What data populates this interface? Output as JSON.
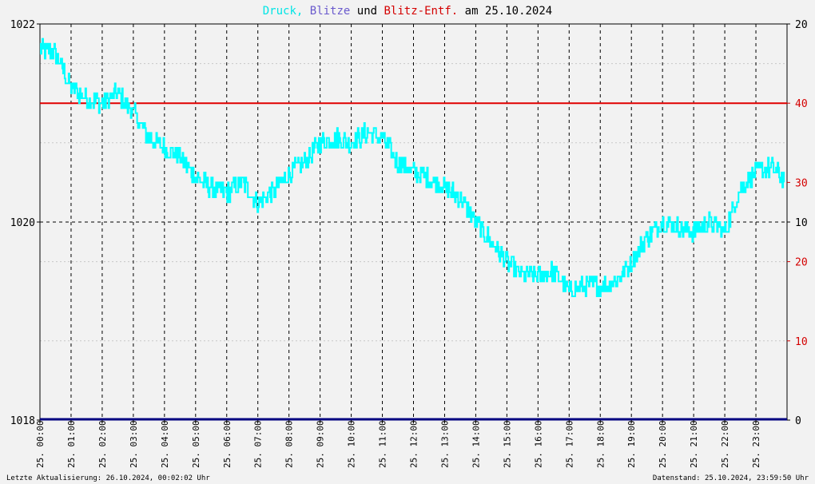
{
  "title_parts": [
    {
      "text": "Druck",
      "color": "#00e5e5"
    },
    {
      "text": ", ",
      "color": "#00e5e5"
    },
    {
      "text": "Blitze",
      "color": "#6a5acd"
    },
    {
      "text": " und ",
      "color": "#000000"
    },
    {
      "text": "Blitz-Entf.",
      "color": "#d40000"
    },
    {
      "text": " am 25.10.2024",
      "color": "#000000"
    }
  ],
  "footer": {
    "left": "Letzte Aktualisierung: 26.10.2024, 00:02:02 Uhr",
    "right": "Datenstand: 25.10.2024, 23:59:50 Uhr"
  },
  "colors": {
    "pressure": "#00ffff",
    "blitze_axis": "#000000",
    "entf_axis": "#d40000",
    "entf_line": "#e00000",
    "zero_line": "#000080"
  },
  "chart_data": {
    "type": "line",
    "title": "Druck, Blitze und Blitz-Entf. am 25.10.2024",
    "x_tick_labels": [
      "25. 00:00",
      "25. 01:00",
      "25. 02:00",
      "25. 03:00",
      "25. 04:00",
      "25. 05:00",
      "25. 06:00",
      "25. 07:00",
      "25. 08:00",
      "25. 09:00",
      "25. 10:00",
      "25. 11:00",
      "25. 12:00",
      "25. 13:00",
      "25. 14:00",
      "25. 15:00",
      "25. 16:00",
      "25. 17:00",
      "25. 18:00",
      "25. 19:00",
      "25. 20:00",
      "25. 21:00",
      "25. 22:00",
      "25. 23:00"
    ],
    "xlim_hours": [
      0,
      24
    ],
    "left_axis": {
      "ylim": [
        1018,
        1022
      ],
      "ticks": [
        "1022",
        "1020",
        "1018"
      ]
    },
    "right_axis_black": {
      "ticks": [
        {
          "label": "20",
          "value": 20
        },
        {
          "label": "10",
          "value": 10
        },
        {
          "label": "0",
          "value": 0
        }
      ],
      "ylim": [
        0,
        20
      ]
    },
    "right_axis_red": {
      "ticks": [
        {
          "label": "40",
          "value": 40
        },
        {
          "label": "30",
          "value": 30
        },
        {
          "label": "20",
          "value": 20
        },
        {
          "label": "10",
          "value": 10
        }
      ],
      "ylim": [
        0,
        50
      ]
    },
    "grid": true,
    "series": [
      {
        "name": "Druck",
        "axis": "left",
        "x_hours": [
          0,
          0.5,
          1,
          1.5,
          2,
          2.5,
          3,
          3.5,
          4,
          4.5,
          5,
          5.5,
          6,
          6.5,
          7,
          7.5,
          8,
          8.5,
          9,
          9.5,
          10,
          10.5,
          11,
          11.5,
          12,
          12.5,
          13,
          13.5,
          14,
          14.5,
          15,
          15.5,
          16,
          16.5,
          17,
          17.5,
          18,
          18.5,
          19,
          19.5,
          20,
          20.5,
          21,
          21.5,
          22,
          22.5,
          23,
          23.5,
          23.9
        ],
        "values": [
          1021.75,
          1021.7,
          1021.35,
          1021.25,
          1021.2,
          1021.3,
          1021.1,
          1020.85,
          1020.75,
          1020.65,
          1020.45,
          1020.35,
          1020.3,
          1020.4,
          1020.2,
          1020.3,
          1020.5,
          1020.6,
          1020.8,
          1020.85,
          1020.8,
          1020.9,
          1020.85,
          1020.6,
          1020.5,
          1020.45,
          1020.35,
          1020.25,
          1020.0,
          1019.8,
          1019.6,
          1019.45,
          1019.45,
          1019.5,
          1019.3,
          1019.35,
          1019.35,
          1019.4,
          1019.6,
          1019.85,
          1020.0,
          1019.95,
          1019.9,
          1020.0,
          1019.9,
          1020.35,
          1020.5,
          1020.55,
          1020.45
        ],
        "noise_amplitude": 0.1
      },
      {
        "name": "Blitz-Entf.",
        "axis": "right_red",
        "values": [
          40
        ],
        "style": "horizontal-line"
      },
      {
        "name": "Blitze",
        "axis": "right_black",
        "values": [
          0
        ],
        "style": "horizontal-line"
      }
    ]
  }
}
